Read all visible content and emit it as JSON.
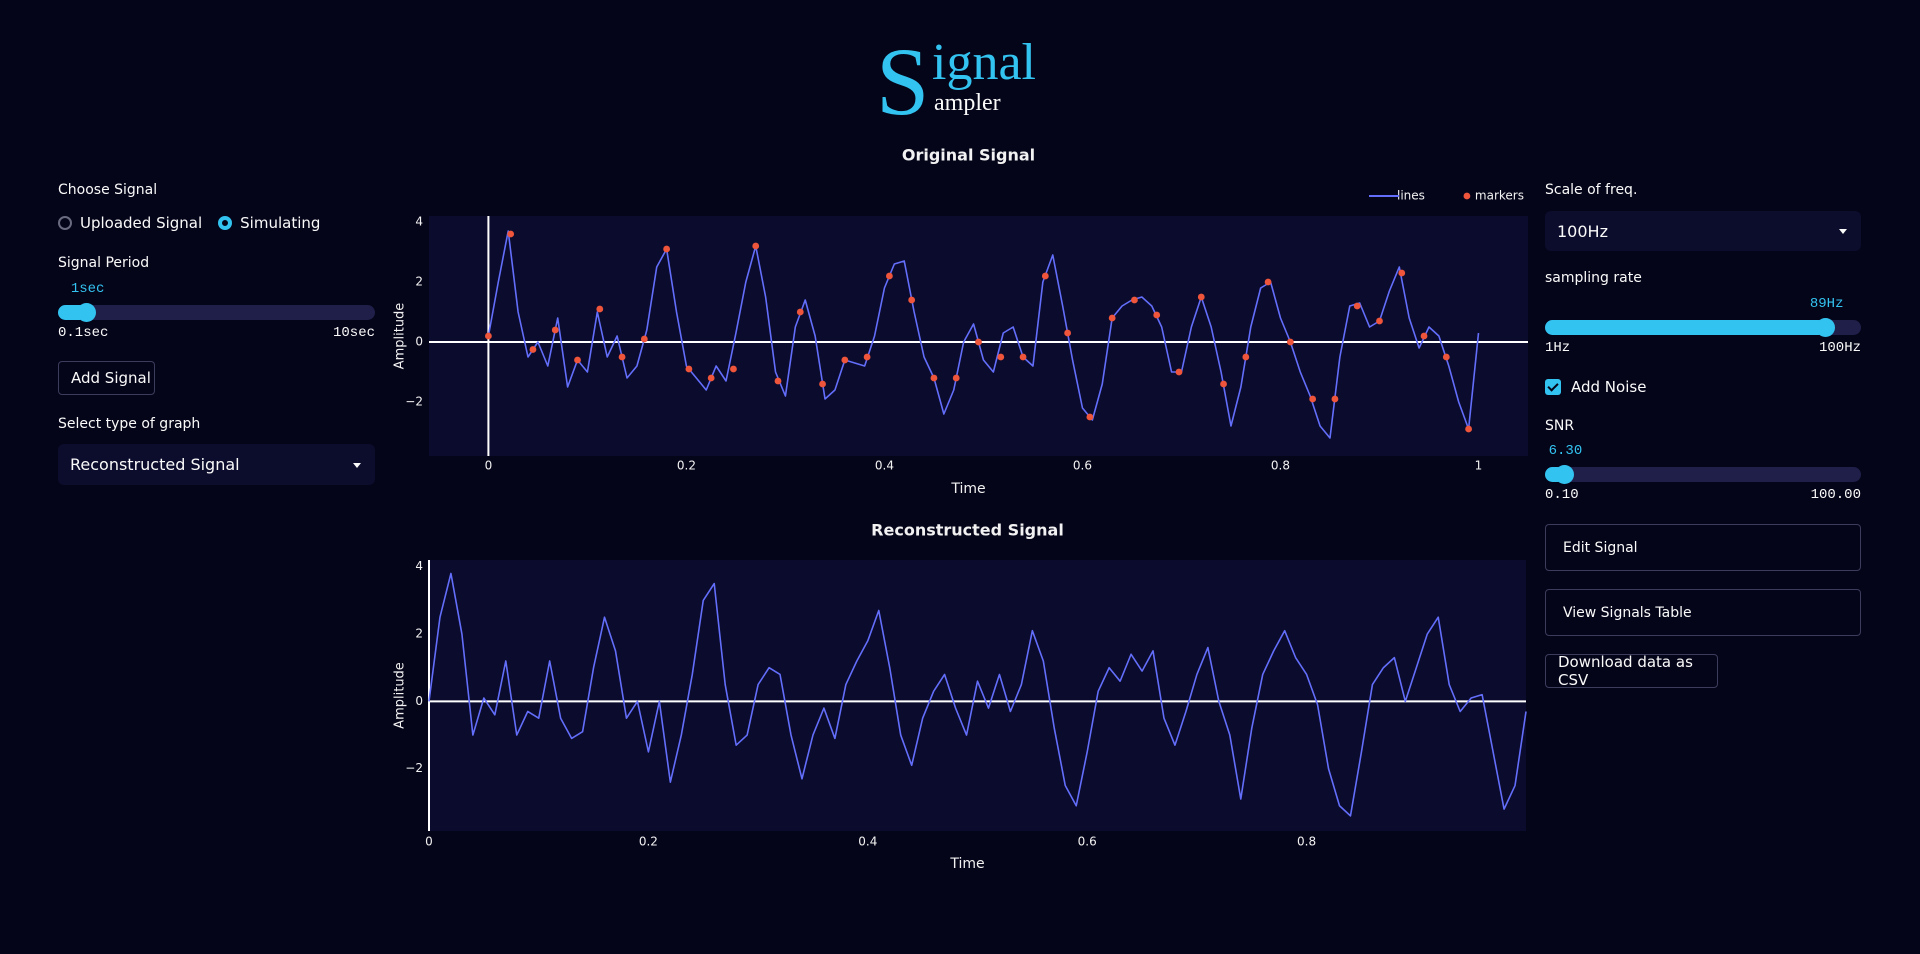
{
  "header": {
    "initial": "S",
    "title": "ignal",
    "subtitle": "ampler"
  },
  "left_panel": {
    "signal_choice": {
      "label": "Choose Signal",
      "options": [
        "Uploaded Signal",
        "Simulating"
      ],
      "selected": 1
    },
    "period": {
      "label": "Signal Period",
      "value": 1,
      "min": 0.1,
      "max": 10,
      "value_label": "1sec",
      "min_label": "0.1sec",
      "max_label": "10sec"
    },
    "add_button": "Add Signal",
    "graph_type": {
      "label": "Select type of graph",
      "selected": "Reconstructed Signal"
    }
  },
  "right_panel": {
    "freq_scale": {
      "label": "Scale of freq.",
      "selected": "100Hz"
    },
    "sampling_rate": {
      "label": "sampling rate",
      "value": 89,
      "min": 1,
      "max": 100,
      "value_label": "89Hz",
      "min_label": "1Hz",
      "max_label": "100Hz"
    },
    "noise": {
      "label": "Add Noise",
      "checked": true
    },
    "snr": {
      "label": "SNR",
      "value": 6.3,
      "min": 0.1,
      "max": 100,
      "value_label": "6.30",
      "min_label": "0.10",
      "max_label": "100.00"
    },
    "buttons": [
      "Edit Signal",
      "View Signals Table"
    ],
    "download": "Download data as CSV"
  },
  "chart_data": [
    {
      "type": "line",
      "title": "Original Signal",
      "x_label": "Time",
      "y_label": "Amplitude",
      "xlim": [
        -0.06,
        1.05
      ],
      "ylim": [
        -3.8,
        4.2
      ],
      "xticks": [
        0,
        0.2,
        0.4,
        0.6,
        0.8,
        1
      ],
      "yticks": [
        {
          "value": -2,
          "label": "−2"
        },
        0,
        2,
        4
      ],
      "grid": false,
      "legend": "top-right",
      "series": [
        {
          "name": "lines",
          "mode": "lines",
          "color": "#636efa",
          "x": [
            0,
            0.01,
            0.02,
            0.03,
            0.04,
            0.05,
            0.06,
            0.07,
            0.08,
            0.09,
            0.1,
            0.11,
            0.12,
            0.13,
            0.14,
            0.15,
            0.16,
            0.17,
            0.18,
            0.19,
            0.2,
            0.21,
            0.22,
            0.23,
            0.24,
            0.25,
            0.26,
            0.27,
            0.28,
            0.29,
            0.3,
            0.31,
            0.32,
            0.33,
            0.34,
            0.35,
            0.36,
            0.37,
            0.38,
            0.39,
            0.4,
            0.41,
            0.42,
            0.43,
            0.44,
            0.45,
            0.46,
            0.47,
            0.48,
            0.49,
            0.5,
            0.51,
            0.52,
            0.53,
            0.54,
            0.55,
            0.56,
            0.57,
            0.58,
            0.59,
            0.6,
            0.61,
            0.62,
            0.63,
            0.64,
            0.65,
            0.66,
            0.67,
            0.68,
            0.69,
            0.7,
            0.71,
            0.72,
            0.73,
            0.74,
            0.75,
            0.76,
            0.77,
            0.78,
            0.79,
            0.8,
            0.81,
            0.82,
            0.83,
            0.84,
            0.85,
            0.86,
            0.87,
            0.88,
            0.89,
            0.9,
            0.91,
            0.92,
            0.93,
            0.94,
            0.95,
            0.96,
            0.97,
            0.98,
            0.99,
            1
          ],
          "values": [
            0.2,
            2.0,
            3.7,
            1.0,
            -0.5,
            0,
            -0.8,
            0.8,
            -1.5,
            -0.6,
            -1.0,
            1.0,
            -0.5,
            0.2,
            -1.2,
            -0.8,
            0.4,
            2.5,
            3.1,
            1.0,
            -0.8,
            -1.2,
            -1.6,
            -0.8,
            -1.3,
            0.3,
            2.0,
            3.2,
            1.5,
            -1.0,
            -1.8,
            0.5,
            1.4,
            0.2,
            -1.9,
            -1.6,
            -0.6,
            -0.7,
            -0.8,
            0.2,
            1.8,
            2.6,
            2.7,
            1.0,
            -0.5,
            -1.2,
            -2.4,
            -1.6,
            0,
            0.6,
            -0.6,
            -1.0,
            0.3,
            0.5,
            -0.5,
            -0.8,
            2.0,
            2.9,
            1.2,
            -0.6,
            -2.2,
            -2.6,
            -1.4,
            0.8,
            1.2,
            1.4,
            1.5,
            1.2,
            0.5,
            -1.0,
            -1.0,
            0.5,
            1.5,
            0.5,
            -1.0,
            -2.8,
            -1.5,
            0.5,
            1.8,
            2.0,
            0.8,
            0,
            -1.0,
            -1.8,
            -2.8,
            -3.2,
            -0.5,
            1.2,
            1.3,
            0.5,
            0.7,
            1.7,
            2.5,
            0.8,
            -0.2,
            0.5,
            0.2,
            -0.8,
            -2.0,
            -2.9,
            0.3
          ]
        },
        {
          "name": "markers",
          "mode": "markers",
          "color": "#ef553b",
          "x": [
            0,
            0.0225,
            0.045,
            0.0675,
            0.09,
            0.1125,
            0.135,
            0.1575,
            0.18,
            0.2025,
            0.225,
            0.2475,
            0.27,
            0.2925,
            0.315,
            0.3375,
            0.36,
            0.3825,
            0.405,
            0.4275,
            0.45,
            0.4725,
            0.495,
            0.5175,
            0.54,
            0.5625,
            0.585,
            0.6075,
            0.63,
            0.6525,
            0.675,
            0.6975,
            0.72,
            0.7425,
            0.765,
            0.7875,
            0.81,
            0.8325,
            0.855,
            0.8775,
            0.9,
            0.9225,
            0.945,
            0.9675,
            0.99
          ],
          "values": [
            0.2,
            3.6,
            -0.25,
            0.4,
            -0.6,
            1.1,
            -0.5,
            0.1,
            3.1,
            -0.9,
            -1.2,
            -0.9,
            3.2,
            -1.3,
            1.0,
            -1.4,
            -0.6,
            -0.5,
            2.2,
            1.4,
            -1.2,
            -1.2,
            0,
            -0.5,
            -0.5,
            2.2,
            0.3,
            -2.5,
            0.8,
            1.4,
            0.9,
            -1.0,
            1.5,
            -1.4,
            -0.5,
            2.0,
            0,
            -1.9,
            -1.9,
            1.2,
            0.7,
            2.3,
            0.2,
            -0.5,
            -2.9
          ]
        }
      ]
    },
    {
      "type": "line",
      "title": "Reconstructed Signal",
      "x_label": "Time",
      "y_label": "Amplitude",
      "xlim": [
        0,
        1.0
      ],
      "ylim": [
        -3.85,
        4.2
      ],
      "xticks": [
        0,
        0.2,
        0.4,
        0.6,
        0.8
      ],
      "yticks": [
        {
          "value": -2,
          "label": "−2"
        },
        0,
        2,
        4
      ],
      "grid": false,
      "series": [
        {
          "mode": "lines",
          "color": "#636efa",
          "x": [
            0,
            0.01,
            0.02,
            0.03,
            0.04,
            0.05,
            0.06,
            0.07,
            0.08,
            0.09,
            0.1,
            0.11,
            0.12,
            0.13,
            0.14,
            0.15,
            0.16,
            0.17,
            0.18,
            0.19,
            0.2,
            0.21,
            0.22,
            0.23,
            0.24,
            0.25,
            0.26,
            0.27,
            0.28,
            0.29,
            0.3,
            0.31,
            0.32,
            0.33,
            0.34,
            0.35,
            0.36,
            0.37,
            0.38,
            0.39,
            0.4,
            0.41,
            0.42,
            0.43,
            0.44,
            0.45,
            0.46,
            0.47,
            0.48,
            0.49,
            0.5,
            0.51,
            0.52,
            0.53,
            0.54,
            0.55,
            0.56,
            0.57,
            0.58,
            0.59,
            0.6,
            0.61,
            0.62,
            0.63,
            0.64,
            0.65,
            0.66,
            0.67,
            0.68,
            0.69,
            0.7,
            0.71,
            0.72,
            0.73,
            0.74,
            0.75,
            0.76,
            0.77,
            0.78,
            0.79,
            0.8,
            0.81,
            0.82,
            0.83,
            0.84,
            0.85,
            0.86,
            0.87,
            0.88,
            0.89,
            0.9,
            0.91,
            0.92,
            0.93,
            0.94,
            0.95,
            0.96,
            0.97,
            0.98,
            0.99,
            1
          ],
          "values": [
            0,
            2.5,
            3.8,
            2.0,
            -1.0,
            0.1,
            -0.4,
            1.2,
            -1.0,
            -0.3,
            -0.5,
            1.2,
            -0.5,
            -1.1,
            -0.9,
            1.0,
            2.5,
            1.5,
            -0.5,
            0,
            -1.5,
            0,
            -2.4,
            -1.0,
            0.8,
            3.0,
            3.5,
            0.5,
            -1.3,
            -1.0,
            0.5,
            1.0,
            0.8,
            -1.0,
            -2.3,
            -1.0,
            -0.2,
            -1.1,
            0.5,
            1.2,
            1.8,
            2.7,
            1.0,
            -1.0,
            -1.9,
            -0.5,
            0.3,
            0.8,
            -0.2,
            -1.0,
            0.6,
            -0.2,
            0.8,
            -0.3,
            0.5,
            2.1,
            1.2,
            -0.8,
            -2.5,
            -3.1,
            -1.5,
            0.3,
            1.0,
            0.6,
            1.4,
            0.9,
            1.5,
            -0.5,
            -1.3,
            -0.3,
            0.8,
            1.6,
            0,
            -1.0,
            -2.9,
            -0.8,
            0.8,
            1.5,
            2.1,
            1.3,
            0.8,
            -0.1,
            -2.0,
            -3.1,
            -3.4,
            -1.5,
            0.5,
            1.0,
            1.3,
            0,
            1.0,
            2.0,
            2.5,
            0.5,
            -0.3,
            0.1,
            0.2,
            -1.5,
            -3.2,
            -2.5,
            -0.3
          ]
        }
      ]
    }
  ]
}
